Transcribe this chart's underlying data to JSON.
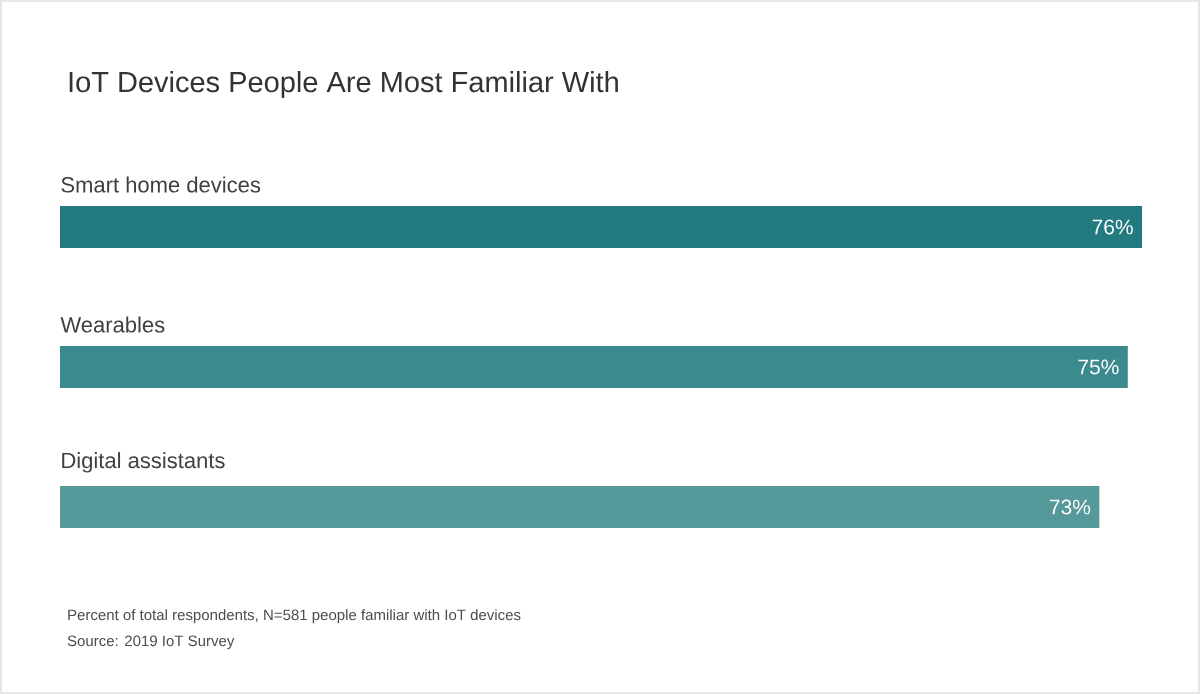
{
  "chart_data": {
    "type": "bar",
    "orientation": "horizontal",
    "title": "IoT Devices People Are Most Familiar With",
    "categories": [
      "Smart home devices",
      "Wearables",
      "Digital assistants"
    ],
    "values": [
      76,
      75,
      73
    ],
    "colors": [
      "#237b80",
      "#3b8a8e",
      "#56999b"
    ],
    "value_labels": [
      "76%",
      "75%",
      "73%"
    ],
    "annotations": [
      "Percent of total respondents, N=581 people familiar with IoT devices",
      "Source: 2019 IoT Survey"
    ]
  }
}
